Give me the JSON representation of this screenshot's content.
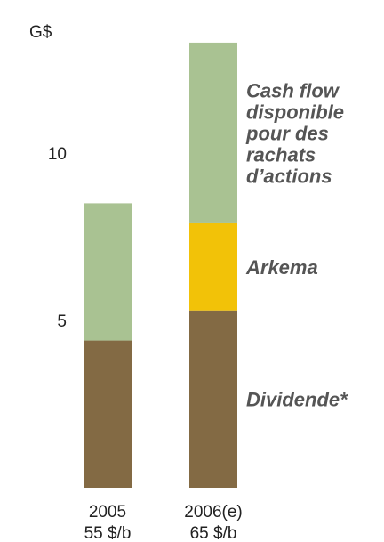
{
  "chart_data": {
    "type": "bar",
    "stacked": true,
    "unit_label": "G$",
    "categories": [
      "2005",
      "2006(e)"
    ],
    "category_sublabels": [
      "55 $/b",
      "65 $/b"
    ],
    "y_ticks": [
      5,
      10
    ],
    "ylim": [
      0,
      14
    ],
    "grid": false,
    "legend": "right-inline",
    "series": [
      {
        "name": "Dividende*",
        "color": "#836A44",
        "values": [
          4.4,
          5.3
        ]
      },
      {
        "name": "Arkema",
        "color": "#F2C208",
        "values": [
          0,
          2.6
        ]
      },
      {
        "name": "Cash flow disponible pour des rachats d’actions",
        "color": "#A9C292",
        "values": [
          4.1,
          5.4
        ]
      }
    ],
    "series_label_lines": [
      [
        "Dividende*"
      ],
      [
        "Arkema"
      ],
      [
        "Cash flow",
        "disponible",
        "pour des",
        "rachats",
        "d’actions"
      ]
    ]
  }
}
